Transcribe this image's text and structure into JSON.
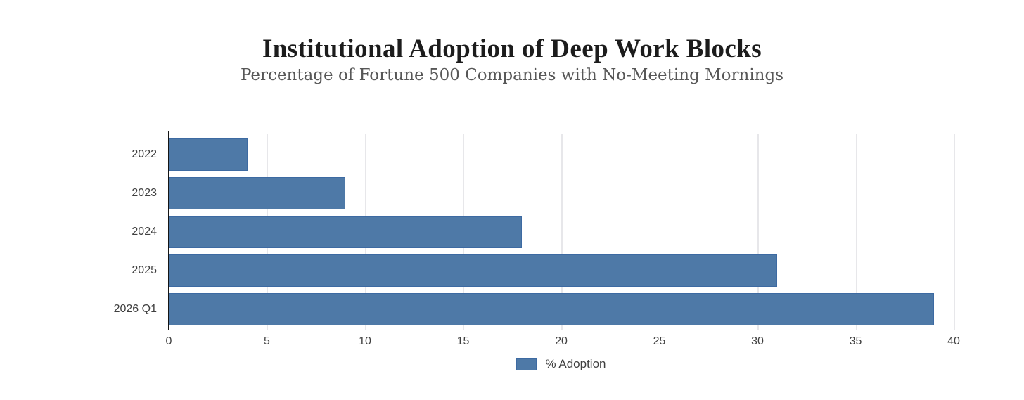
{
  "chart_data": {
    "type": "bar",
    "orientation": "horizontal",
    "title": "Institutional Adoption of Deep Work Blocks",
    "subtitle": "Percentage of Fortune 500 Companies with No-Meeting Mornings",
    "categories": [
      "2022",
      "2023",
      "2024",
      "2025",
      "2026 Q1"
    ],
    "series": [
      {
        "name": "% Adoption",
        "values": [
          4,
          9,
          18,
          31,
          39
        ]
      }
    ],
    "xlabel": "",
    "ylabel": "",
    "xlim": [
      0,
      40
    ],
    "xticks": [
      0,
      5,
      10,
      15,
      20,
      25,
      30,
      35,
      40
    ],
    "grid": "vertical",
    "legend_position": "bottom",
    "colors": {
      "bar_fill": "#4e79a7",
      "bar_border": "#3d6aa2",
      "gridline": "#e7e7ea",
      "axis_line": "#141414",
      "title_text": "#1c1c1c",
      "subtitle_text": "#575757",
      "label_text": "#3f3f3f"
    }
  }
}
